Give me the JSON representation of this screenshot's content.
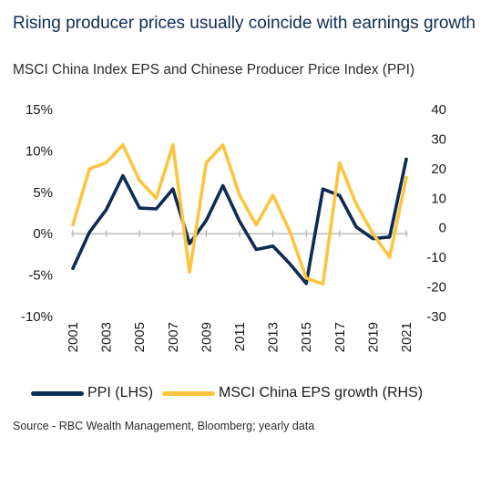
{
  "title": "Rising producer prices usually coincide with earnings growth",
  "subtitle": "MSCI China Index EPS and Chinese Producer Price Index (PPI)",
  "source": "Source - RBC Wealth Management, Bloomberg; yearly data",
  "chart_data": {
    "type": "line",
    "x": [
      2001,
      2002,
      2003,
      2004,
      2005,
      2006,
      2007,
      2008,
      2009,
      2010,
      2011,
      2012,
      2013,
      2014,
      2015,
      2016,
      2017,
      2018,
      2019,
      2020,
      2021
    ],
    "x_tick_labels": [
      "2001",
      "2003",
      "2005",
      "2007",
      "2009",
      "2011",
      "2013",
      "2015",
      "2017",
      "2019",
      "2021"
    ],
    "series": [
      {
        "name": "PPI (LHS)",
        "axis": "left",
        "color": "#0d2c54",
        "values": [
          -4.2,
          0.2,
          2.9,
          7.0,
          3.1,
          3.0,
          5.4,
          -1.2,
          1.6,
          5.8,
          1.5,
          -1.9,
          -1.5,
          -3.6,
          -6.0,
          5.4,
          4.6,
          0.8,
          -0.6,
          -0.4,
          9.0
        ]
      },
      {
        "name": "MSCI China EPS growth (RHS)",
        "axis": "right",
        "color": "#fdc43f",
        "values": [
          1,
          20,
          22,
          28,
          16,
          10,
          28,
          -15,
          22,
          28,
          11,
          1,
          11,
          -1,
          -17,
          -19,
          22,
          8,
          -2,
          -10,
          17
        ]
      }
    ],
    "ylim_left": [
      -10,
      15
    ],
    "yticks_left": [
      "15%",
      "10%",
      "5%",
      "0%",
      "-5%",
      "-10%"
    ],
    "ylim_right": [
      -30,
      40
    ],
    "yticks_right": [
      "40",
      "30",
      "20",
      "10",
      "0",
      "-10",
      "-20",
      "-30"
    ],
    "grid": false,
    "legend_placement": "bottom"
  }
}
